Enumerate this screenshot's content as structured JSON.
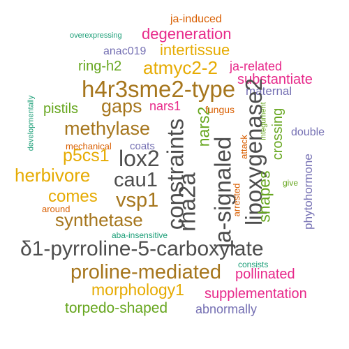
{
  "colors": {
    "gray": "#4d4d4d",
    "brown": "#a6761d",
    "green": "#66a61e",
    "magenta": "#e7298a",
    "gold": "#e6ab02",
    "orange": "#d95f02",
    "purple": "#7570b3",
    "teal": "#1b9e77"
  },
  "words": {
    "ja_induced": "ja-induced",
    "overexpressing": "overexpressing",
    "degeneration": "degeneration",
    "anac019": "anac019",
    "intertissue": "intertissue",
    "ring_h2": "ring-h2",
    "atmyc2_2": "atmyc2-2",
    "ja_related": "ja-related",
    "substantiate": "substantiate",
    "h4r3sme2_type": "h4r3sme2-type",
    "maternal": "maternal",
    "developmentally": "developmentally",
    "pistils": "pistils",
    "gaps": "gaps",
    "nars1": "nars1",
    "nars2": "nars2",
    "fungus": "fungus",
    "lipoxygenase2": "lipoxygenase2",
    "crossing": "crossing",
    "integument": "integument",
    "methylase": "methylase",
    "constraints": "constraints",
    "double": "double",
    "mechanical": "mechanical",
    "coats": "coats",
    "p5cs1": "p5cs1",
    "lox2": "lox2",
    "attack": "attack",
    "herbivore": "herbivore",
    "cau1": "cau1",
    "rha2a": "rha2a",
    "ja_signaled": "ja-signaled",
    "shapes": "shapes",
    "give": "give",
    "comes": "comes",
    "vsp1": "vsp1",
    "arrested": "arrested",
    "phytohormone": "phytohormone",
    "around": "around",
    "synthetase": "synthetase",
    "aba_insensitive": "aba-insensitive",
    "pyrroline": "δ1-pyrroline-5-carboxylate",
    "consists": "consists",
    "proline_mediated": "proline-mediated",
    "pollinated": "pollinated",
    "morphology1": "morphology1",
    "supplementation": "supplementation",
    "torpedo_shaped": "torpedo-shaped",
    "abnormally": "abnormally"
  }
}
